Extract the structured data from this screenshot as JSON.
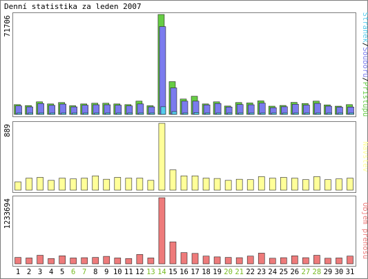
{
  "title": "Denní statistika za leden 2007",
  "colors": {
    "border": "#7b7b7b",
    "background": "#ffffff",
    "pristupy": "#66cc44",
    "soubory": "#7b7bee",
    "stranky": "#55ccee",
    "navstevy": "#ffff99",
    "prenos": "#ee7b7b",
    "weekend_label": "#77bb22",
    "normal_label": "#000000"
  },
  "chart_data": [
    {
      "type": "bar",
      "panel": "top",
      "ymax_label": "71706",
      "legend": [
        "Stránek",
        "Souborů",
        "Přístupů"
      ],
      "legend_separator": "/",
      "categories": [
        "1",
        "2",
        "3",
        "4",
        "5",
        "6",
        "7",
        "8",
        "9",
        "10",
        "11",
        "12",
        "13",
        "14",
        "15",
        "16",
        "17",
        "18",
        "19",
        "20",
        "21",
        "22",
        "23",
        "24",
        "25",
        "26",
        "27",
        "28",
        "29",
        "30",
        "31"
      ],
      "weekend_days": [
        "6",
        "7",
        "13",
        "14",
        "20",
        "21",
        "27",
        "28"
      ],
      "series": [
        {
          "name": "Přístupů",
          "values": [
            7000,
            6300,
            9000,
            7500,
            8500,
            6200,
            7500,
            8000,
            8000,
            7500,
            7000,
            9500,
            6200,
            71706,
            23500,
            11000,
            13000,
            7500,
            9000,
            6000,
            8500,
            8200,
            9700,
            5900,
            6400,
            8600,
            7800,
            9500,
            6800,
            5900,
            7000
          ]
        },
        {
          "name": "Souborů",
          "values": [
            6100,
            5400,
            7800,
            6500,
            7400,
            5400,
            6600,
            6900,
            6900,
            6600,
            6100,
            7500,
            5400,
            63000,
            19000,
            9500,
            9500,
            6800,
            7800,
            5300,
            7100,
            6900,
            8100,
            4800,
            5500,
            7300,
            6700,
            7900,
            5900,
            5200,
            5300
          ]
        },
        {
          "name": "Stránek",
          "values": [
            600,
            500,
            700,
            600,
            700,
            500,
            600,
            600,
            600,
            600,
            500,
            700,
            500,
            5500,
            2000,
            1000,
            1300,
            600,
            700,
            500,
            700,
            600,
            800,
            500,
            500,
            700,
            600,
            700,
            500,
            500,
            500
          ]
        }
      ],
      "ymax": 71706
    },
    {
      "type": "bar",
      "panel": "middle",
      "ymax_label": "889",
      "legend": [
        "Návštěv"
      ],
      "categories": [
        "1",
        "2",
        "3",
        "4",
        "5",
        "6",
        "7",
        "8",
        "9",
        "10",
        "11",
        "12",
        "13",
        "14",
        "15",
        "16",
        "17",
        "18",
        "19",
        "20",
        "21",
        "22",
        "23",
        "24",
        "25",
        "26",
        "27",
        "28",
        "29",
        "30",
        "31"
      ],
      "series": [
        {
          "name": "Návštěv",
          "values": [
            110,
            160,
            170,
            130,
            160,
            150,
            160,
            190,
            145,
            170,
            160,
            160,
            130,
            889,
            270,
            190,
            190,
            160,
            155,
            130,
            145,
            140,
            180,
            160,
            170,
            160,
            140,
            180,
            140,
            150,
            160
          ]
        }
      ],
      "ymax": 889
    },
    {
      "type": "bar",
      "panel": "bottom",
      "ymax_label": "1233694",
      "legend": [
        "Objem přenosu"
      ],
      "categories": [
        "1",
        "2",
        "3",
        "4",
        "5",
        "6",
        "7",
        "8",
        "9",
        "10",
        "11",
        "12",
        "13",
        "14",
        "15",
        "16",
        "17",
        "18",
        "19",
        "20",
        "21",
        "22",
        "23",
        "24",
        "25",
        "26",
        "27",
        "28",
        "29",
        "30",
        "31"
      ],
      "series": [
        {
          "name": "Objem přenosu",
          "values": [
            120000,
            110000,
            160000,
            100000,
            150000,
            110000,
            115000,
            120000,
            140000,
            110000,
            100000,
            175000,
            110000,
            1233694,
            410000,
            210000,
            195000,
            145000,
            130000,
            120000,
            115000,
            145000,
            200000,
            105000,
            115000,
            150000,
            115000,
            160000,
            105000,
            110000,
            145000
          ]
        }
      ],
      "ymax": 1233694
    }
  ]
}
